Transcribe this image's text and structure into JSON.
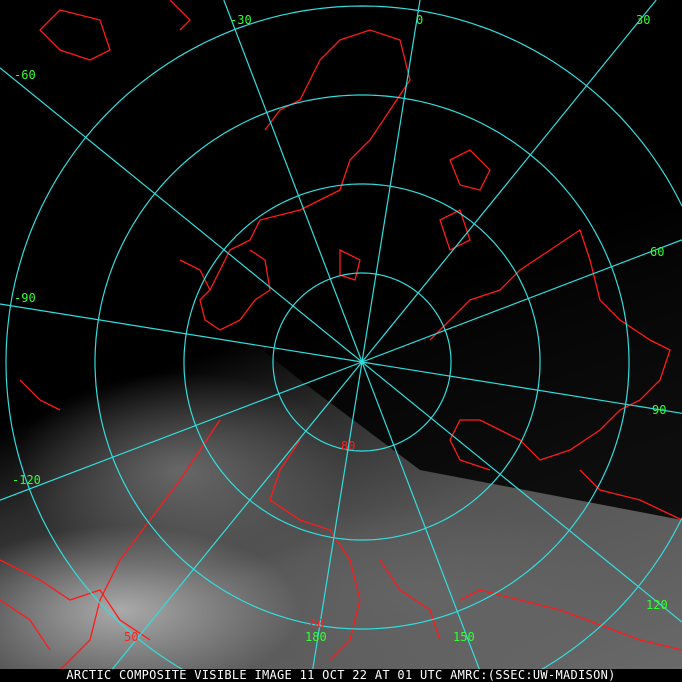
{
  "caption": "ARCTIC COMPOSITE VISIBLE IMAGE 11 OCT 22 AT 01 UTC AMRC:(SSEC:UW-MADISON)",
  "grid": {
    "line_color": "#33dddd",
    "coastline_color": "#ff1a1a",
    "longitude_label_color": "#33ff33",
    "latitude_label_color": "#ff2020",
    "longitude_labels": [
      "-30",
      "0",
      "30",
      "-60",
      "-90",
      "60",
      "90",
      "-120",
      "120",
      "150",
      "180"
    ],
    "latitude_labels": [
      "80",
      "60",
      "50"
    ],
    "latitude_circles": [
      80,
      70,
      60,
      50
    ],
    "meridians": [
      0,
      30,
      60,
      90,
      120,
      150,
      180,
      -150,
      -120,
      -90,
      -60,
      -30
    ]
  }
}
